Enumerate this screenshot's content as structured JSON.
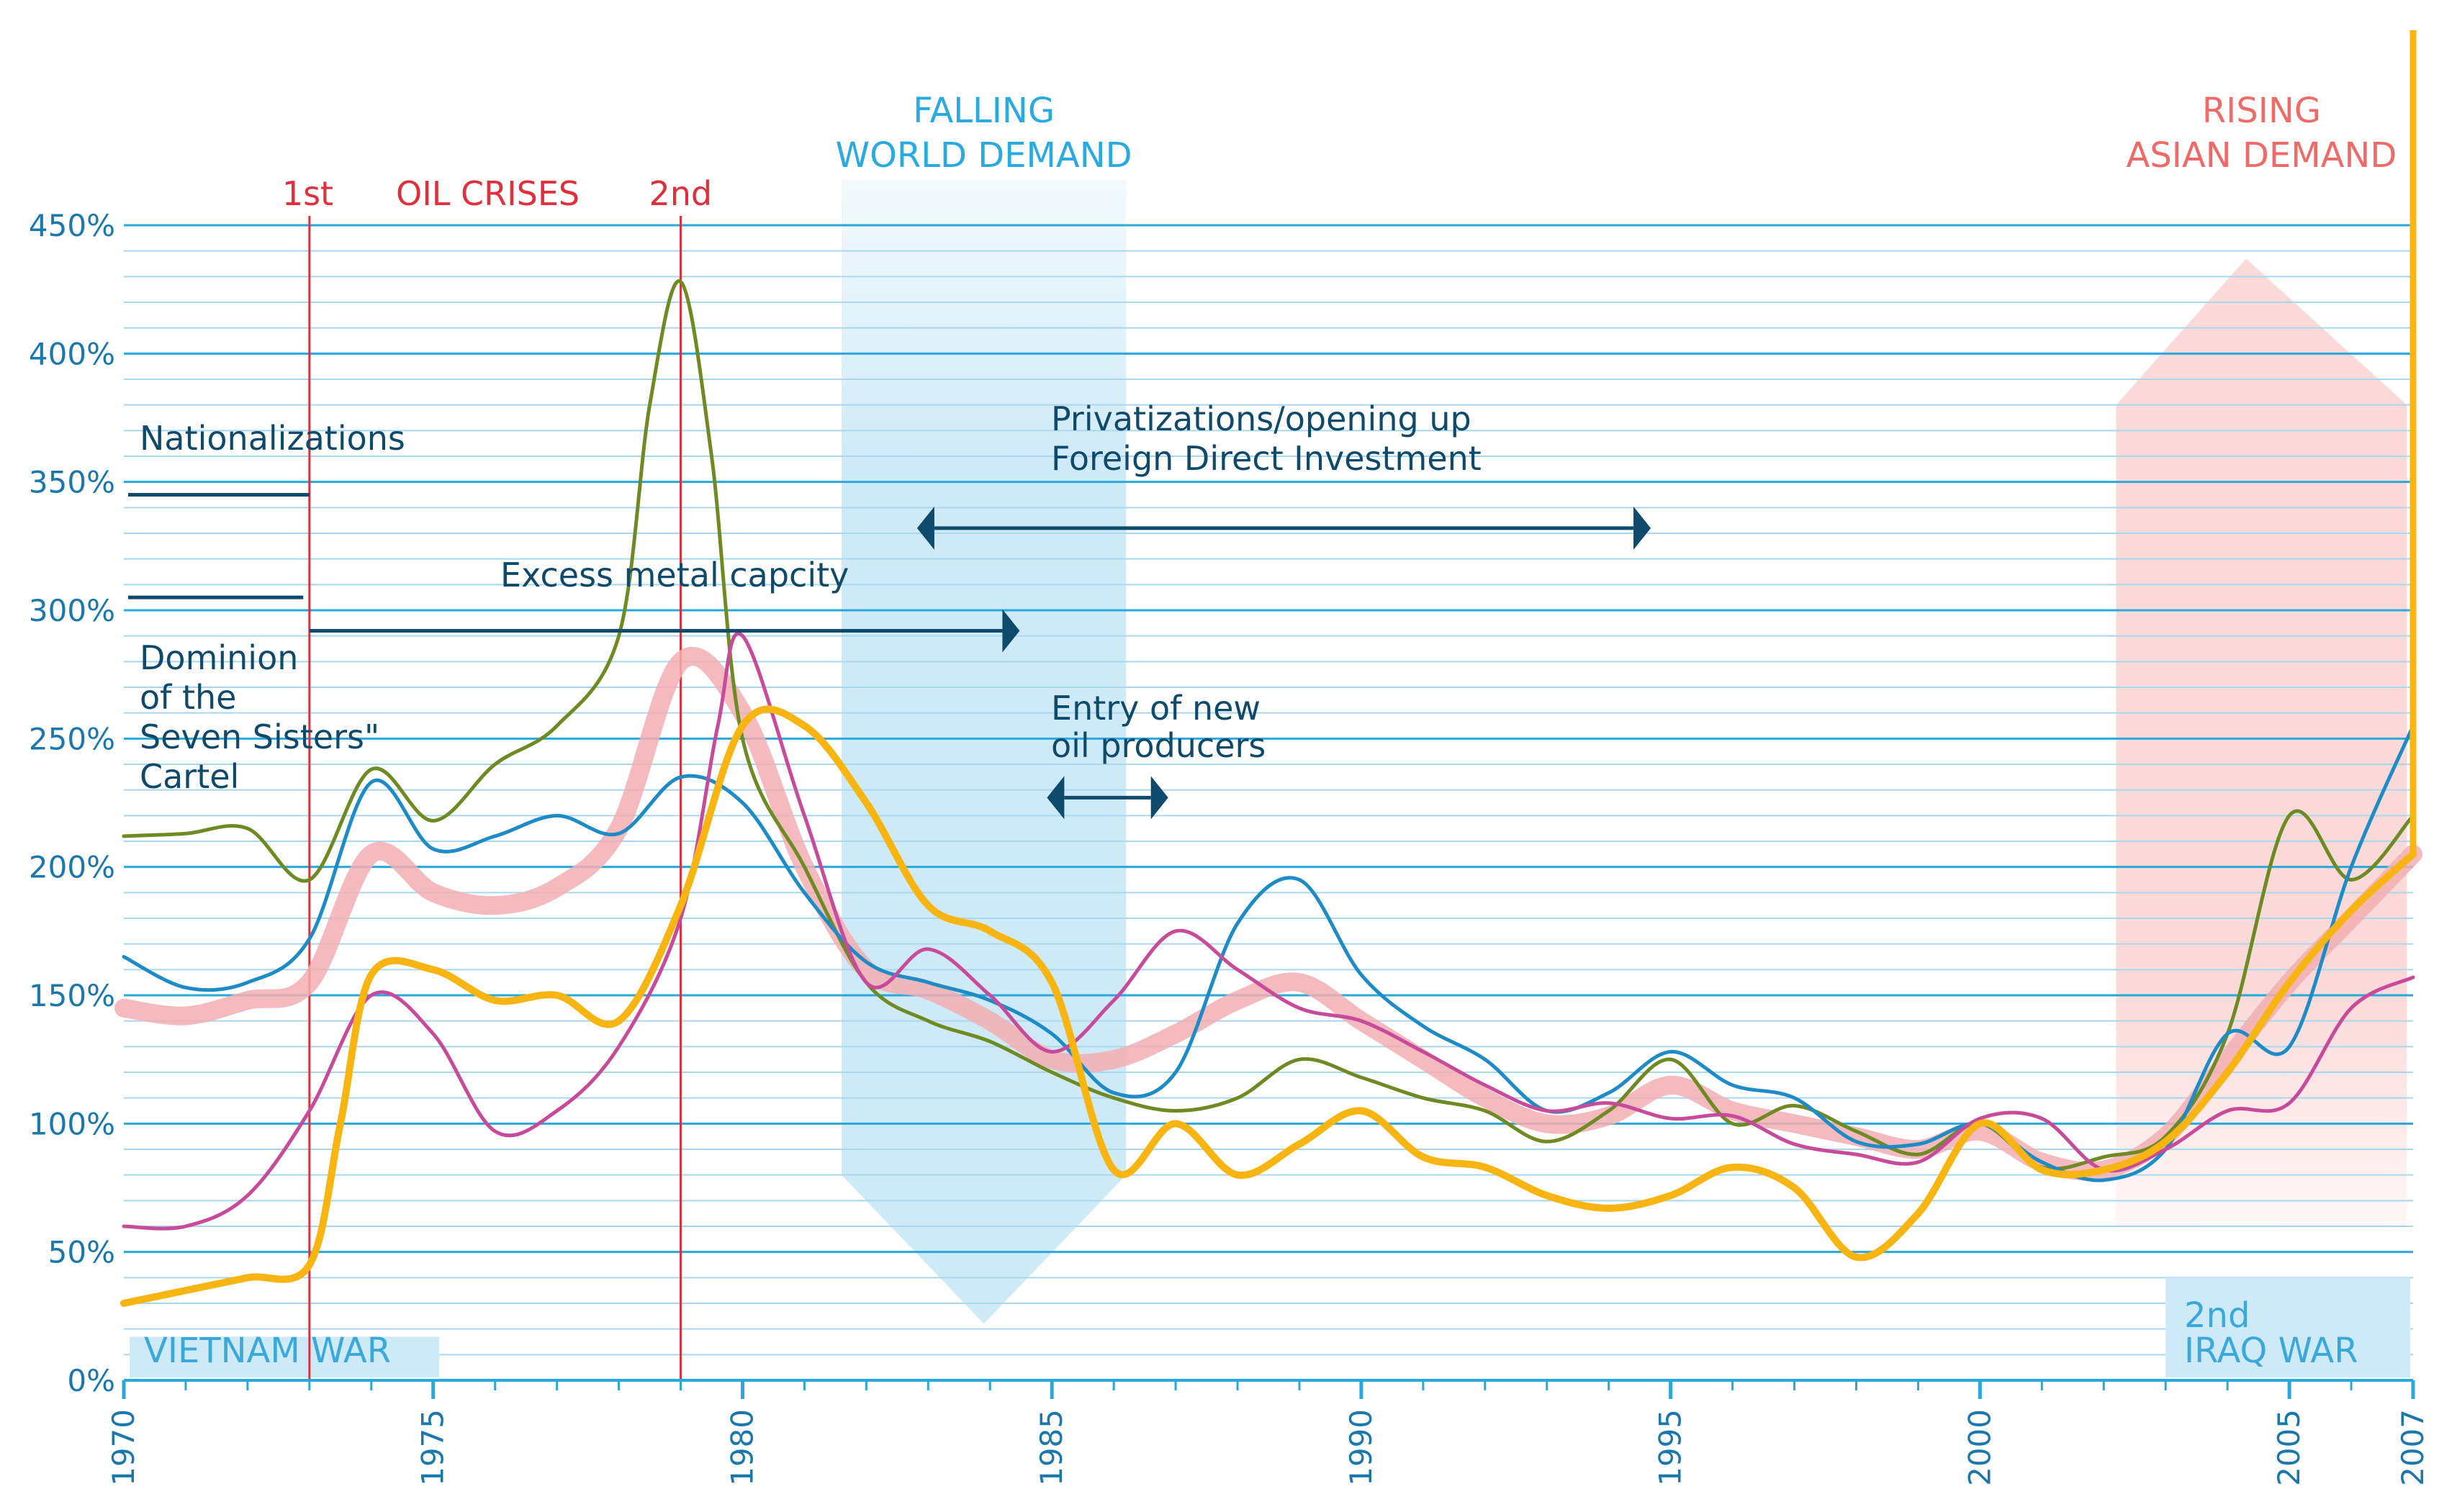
{
  "colors": {
    "grid_major": "#29a8dc",
    "grid_minor": "#a9d8ee",
    "axis_text": "#1b78ad",
    "annotation": "#0d4a6b",
    "crisis_red": "#e0303c",
    "falling_demand_text": "#29aae1",
    "falling_demand_fill": "#cfeaf7",
    "asian_demand_text": "#ef6b67",
    "asian_demand_fill": "#fbd9d8",
    "war_label_bg": "#cfeaf7",
    "war_label_text": "#39a9db"
  },
  "chart_data": {
    "type": "line",
    "title": "",
    "xlabel": "",
    "ylabel": "",
    "xlim": [
      1970,
      2007
    ],
    "ylim": [
      0,
      450
    ],
    "x_ticks": [
      1970,
      1975,
      1980,
      1985,
      1990,
      1995,
      2000,
      2005,
      2007
    ],
    "y_ticks": [
      0,
      50,
      100,
      150,
      200,
      250,
      300,
      350,
      400,
      450
    ],
    "y_tick_labels": [
      "0%",
      "50%",
      "100%",
      "150%",
      "200%",
      "250%",
      "300%",
      "350%",
      "400%",
      "450%"
    ],
    "grid": true,
    "legend": "none",
    "series": [
      {
        "name": "pink index (thick)",
        "color": "#f2aeb1",
        "width": 26,
        "x": [
          1970,
          1971,
          1972,
          1973,
          1974,
          1975,
          1976,
          1977,
          1978,
          1979,
          1980,
          1981,
          1982,
          1983,
          1984,
          1985,
          1986,
          1987,
          1988,
          1989,
          1990,
          1991,
          1992,
          1993,
          1994,
          1995,
          1996,
          1997,
          1998,
          1999,
          2000,
          2001,
          2002,
          2003,
          2004,
          2005,
          2006,
          2007
        ],
        "values": [
          145,
          142,
          148,
          155,
          205,
          190,
          185,
          192,
          215,
          280,
          260,
          200,
          160,
          152,
          140,
          125,
          125,
          135,
          148,
          155,
          140,
          125,
          110,
          100,
          103,
          115,
          105,
          100,
          95,
          90,
          97,
          85,
          82,
          95,
          125,
          155,
          180,
          205
        ]
      },
      {
        "name": "olive green",
        "color": "#6e8a22",
        "width": 5,
        "x": [
          1970,
          1971,
          1972,
          1973,
          1974,
          1975,
          1976,
          1977,
          1978,
          1978.5,
          1979,
          1979.5,
          1980,
          1981,
          1982,
          1983,
          1984,
          1985,
          1986,
          1987,
          1988,
          1989,
          1990,
          1991,
          1992,
          1993,
          1994,
          1995,
          1996,
          1997,
          1998,
          1999,
          2000,
          2001,
          2002,
          2003,
          2004,
          2005,
          2006,
          2007
        ],
        "values": [
          212,
          213,
          215,
          195,
          238,
          218,
          240,
          255,
          290,
          380,
          428,
          360,
          250,
          200,
          155,
          140,
          132,
          120,
          110,
          105,
          110,
          125,
          118,
          110,
          105,
          93,
          105,
          125,
          100,
          107,
          97,
          88,
          100,
          83,
          87,
          95,
          135,
          220,
          195,
          220
        ]
      },
      {
        "name": "blue",
        "color": "#1d8bc6",
        "width": 5,
        "x": [
          1970,
          1971,
          1972,
          1973,
          1974,
          1975,
          1976,
          1977,
          1978,
          1979,
          1980,
          1981,
          1982,
          1983,
          1984,
          1985,
          1986,
          1987,
          1988,
          1989,
          1990,
          1991,
          1992,
          1993,
          1994,
          1995,
          1996,
          1997,
          1998,
          1999,
          2000,
          2001,
          2002,
          2003,
          2004,
          2005,
          2006,
          2007
        ],
        "values": [
          165,
          153,
          155,
          172,
          233,
          207,
          212,
          220,
          213,
          235,
          225,
          190,
          163,
          155,
          148,
          135,
          112,
          120,
          178,
          195,
          158,
          138,
          125,
          105,
          112,
          128,
          115,
          110,
          93,
          92,
          100,
          85,
          78,
          90,
          135,
          130,
          200,
          255
        ]
      },
      {
        "name": "magenta",
        "color": "#c84a9a",
        "width": 5,
        "x": [
          1970,
          1971,
          1972,
          1973,
          1974,
          1975,
          1976,
          1977,
          1978,
          1979,
          1979.6,
          1980,
          1981,
          1982,
          1983,
          1984,
          1985,
          1986,
          1987,
          1988,
          1989,
          1990,
          1991,
          1992,
          1993,
          1994,
          1995,
          1996,
          1997,
          1998,
          1999,
          2000,
          2001,
          2002,
          2003,
          2004,
          2005,
          2006,
          2007
        ],
        "values": [
          60,
          60,
          72,
          105,
          150,
          135,
          97,
          105,
          130,
          180,
          255,
          290,
          220,
          155,
          168,
          150,
          128,
          148,
          175,
          160,
          145,
          140,
          128,
          115,
          105,
          108,
          102,
          103,
          92,
          88,
          85,
          102,
          102,
          82,
          90,
          105,
          108,
          145,
          157
        ]
      },
      {
        "name": "yellow (thick)",
        "color": "#f8b411",
        "width": 10,
        "x": [
          1970,
          1971,
          1972,
          1973,
          1973.5,
          1974,
          1975,
          1976,
          1977,
          1978,
          1979,
          1980,
          1981,
          1982,
          1983,
          1984,
          1985,
          1986,
          1987,
          1988,
          1989,
          1990,
          1991,
          1992,
          1993,
          1994,
          1995,
          1996,
          1997,
          1998,
          1999,
          2000,
          2001,
          2002,
          2003,
          2004,
          2005,
          2006,
          2007
        ],
        "values": [
          30,
          35,
          40,
          45,
          100,
          158,
          160,
          148,
          150,
          140,
          185,
          255,
          255,
          225,
          185,
          175,
          155,
          82,
          100,
          80,
          92,
          105,
          87,
          83,
          72,
          67,
          72,
          83,
          75,
          48,
          65,
          100,
          82,
          82,
          93,
          120,
          155,
          183,
          205
        ]
      }
    ],
    "annotations": {
      "oil_crises": {
        "first": "1st",
        "title": "OIL CRISES",
        "second": "2nd",
        "years": [
          1973,
          1979
        ]
      },
      "falling_demand": {
        "line1": "FALLING",
        "line2": "WORLD DEMAND",
        "from": 1981.6,
        "to": 1986.2
      },
      "rising_demand": {
        "line1": "RISING",
        "line2": "ASIAN DEMAND",
        "from": 2002.2,
        "to": 2006.9
      },
      "nationalizations": "Nationalizations",
      "dominion": [
        "Dominion",
        "of the",
        "Seven Sisters\"",
        "Cartel"
      ],
      "excess_metal": "Excess metal capcity",
      "privatizations": [
        "Privatizations/opening up",
        "Foreign Direct Investment"
      ],
      "entry_producers": [
        "Entry of new",
        "oil producers"
      ],
      "vietnam_war": "VIETNAM WAR",
      "iraq_war": [
        "2nd",
        "IRAQ WAR"
      ]
    }
  }
}
